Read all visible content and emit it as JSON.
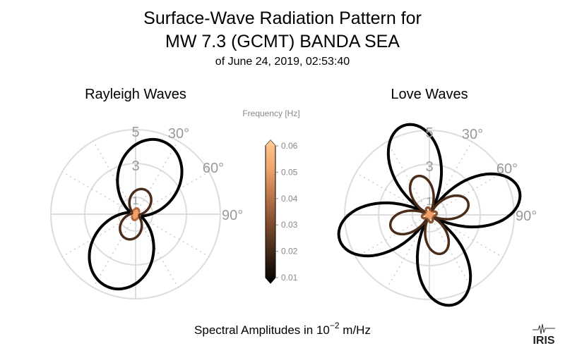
{
  "chart_data": {
    "type": "polar-line",
    "title": [
      "Surface-Wave Radiation Pattern for",
      "MW 7.3 (GCMT) BANDA SEA"
    ],
    "subtitle": "of June 24, 2019, 02:53:40",
    "xlabel": "Spectral Amplitudes in 10",
    "xlabel_exponent": "−2",
    "xlabel_unit": " m/Hz",
    "radial_ticks": [
      {
        "value": 1,
        "label": "1"
      },
      {
        "value": 3,
        "label": "3"
      },
      {
        "value": 5,
        "label": "5"
      }
    ],
    "radial_max": 5,
    "angle_ticks": [
      {
        "value": 30,
        "label": "30°"
      },
      {
        "value": 60,
        "label": "60°"
      },
      {
        "value": 90,
        "label": "90°"
      }
    ],
    "grid": true,
    "colorbar": {
      "label": "Frequency [Hz]",
      "ticks": [
        "0.01",
        "0.02",
        "0.03",
        "0.04",
        "0.05",
        "0.06"
      ],
      "range": [
        0.01,
        0.06
      ],
      "colormap": [
        "#000000",
        "#3a2415",
        "#7a4a2c",
        "#b8734a",
        "#f0a46c",
        "#ffc890"
      ]
    },
    "panels": [
      {
        "title": "Rayleigh Waves",
        "model": "two-lobe",
        "series": [
          {
            "frequency": 0.01,
            "color": "#000000",
            "max": 4.6,
            "min": 0.4,
            "lobe_azimuth": 20
          },
          {
            "frequency": 0.02,
            "color": "#4a2c1a",
            "max": 1.55,
            "min": 0.15,
            "lobe_azimuth": 20
          },
          {
            "frequency": 0.04,
            "color": "#b86a3c",
            "max": 0.35,
            "min": 0.05,
            "lobe_azimuth": 15
          },
          {
            "frequency": 0.05,
            "color": "#f0a066",
            "max": 0.18,
            "min": 0.04,
            "lobe_azimuth": 15
          }
        ]
      },
      {
        "title": "Love Waves",
        "model": "four-lobe",
        "series": [
          {
            "frequency": 0.01,
            "color": "#000000",
            "max": 5.5,
            "lobe_azimuth": -15
          },
          {
            "frequency": 0.02,
            "color": "#4a2c1a",
            "max": 2.4,
            "lobe_azimuth": -18
          },
          {
            "frequency": 0.04,
            "color": "#8a5530",
            "max": 0.45,
            "lobe_azimuth": -15
          },
          {
            "frequency": 0.05,
            "color": "#f0a066",
            "max": 0.2,
            "lobe_azimuth": -15
          }
        ]
      }
    ]
  },
  "logo": "IRIS"
}
